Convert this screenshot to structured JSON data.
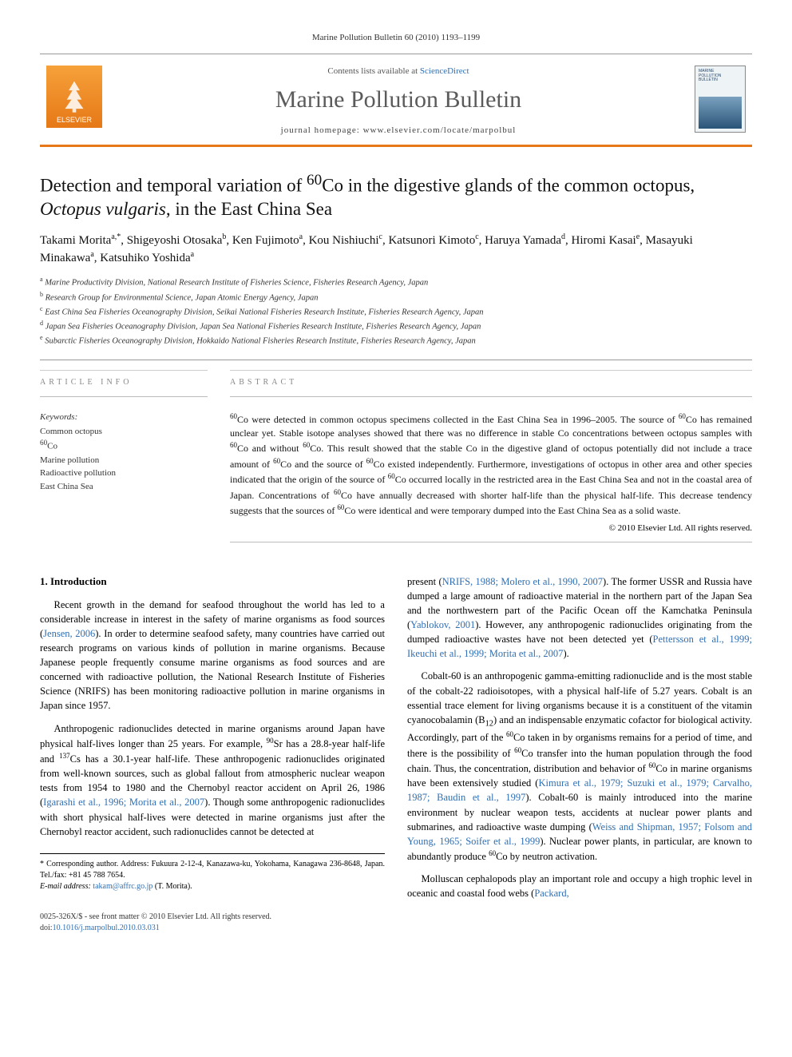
{
  "colors": {
    "accent_orange": "#e67817",
    "link_blue": "#2f6fb3",
    "text_gray": "#5b5b5b",
    "border_gray": "#999999"
  },
  "running_header": "Marine Pollution Bulletin 60 (2010) 1193–1199",
  "header": {
    "publisher_name": "ELSEVIER",
    "contents_prefix": "Contents lists available at ",
    "contents_link": "ScienceDirect",
    "journal_title": "Marine Pollution Bulletin",
    "homepage_prefix": "journal homepage: ",
    "homepage_url": "www.elsevier.com/locate/marpolbul",
    "cover_label_line1": "MARINE",
    "cover_label_line2": "POLLUTION",
    "cover_label_line3": "BULLETIN"
  },
  "title_html": "Detection and temporal variation of <sup>60</sup>Co in the digestive glands of the common octopus, <em>Octopus vulgaris</em>, in the East China Sea",
  "authors_html": "Takami Morita<sup>a,*</sup>, Shigeyoshi Otosaka<sup>b</sup>, Ken Fujimoto<sup>a</sup>, Kou Nishiuchi<sup>c</sup>, Katsunori Kimoto<sup>c</sup>, Haruya Yamada<sup>d</sup>, Hiromi Kasai<sup>e</sup>, Masayuki Minakawa<sup>a</sup>, Katsuhiko Yoshida<sup>a</sup>",
  "affiliations": [
    {
      "sup": "a",
      "text": "Marine Productivity Division, National Research Institute of Fisheries Science, Fisheries Research Agency, Japan"
    },
    {
      "sup": "b",
      "text": "Research Group for Environmental Science, Japan Atomic Energy Agency, Japan"
    },
    {
      "sup": "c",
      "text": "East China Sea Fisheries Oceanography Division, Seikai National Fisheries Research Institute, Fisheries Research Agency, Japan"
    },
    {
      "sup": "d",
      "text": "Japan Sea Fisheries Oceanography Division, Japan Sea National Fisheries Research Institute, Fisheries Research Agency, Japan"
    },
    {
      "sup": "e",
      "text": "Subarctic Fisheries Oceanography Division, Hokkaido National Fisheries Research Institute, Fisheries Research Agency, Japan"
    }
  ],
  "info_label": "ARTICLE INFO",
  "abstract_label": "ABSTRACT",
  "keywords_label": "Keywords:",
  "keywords": [
    "Common octopus",
    "60Co",
    "Marine pollution",
    "Radioactive pollution",
    "East China Sea"
  ],
  "abstract_html": "<sup>60</sup>Co were detected in common octopus specimens collected in the East China Sea in 1996–2005. The source of <sup>60</sup>Co has remained unclear yet. Stable isotope analyses showed that there was no difference in stable Co concentrations between octopus samples with <sup>60</sup>Co and without <sup>60</sup>Co. This result showed that the stable Co in the digestive gland of octopus potentially did not include a trace amount of <sup>60</sup>Co and the source of <sup>60</sup>Co existed independently. Furthermore, investigations of octopus in other area and other species indicated that the origin of the source of <sup>60</sup>Co occurred locally in the restricted area in the East China Sea and not in the coastal area of Japan. Concentrations of <sup>60</sup>Co have annually decreased with shorter half-life than the physical half-life. This decrease tendency suggests that the sources of <sup>60</sup>Co were identical and were temporary dumped into the East China Sea as a solid waste.",
  "copyright": "© 2010 Elsevier Ltd. All rights reserved.",
  "body": {
    "section_heading": "1. Introduction",
    "p1_html": "Recent growth in the demand for seafood throughout the world has led to a considerable increase in interest in the safety of marine organisms as food sources (<a class=\"ref\" href=\"#\">Jensen, 2006</a>). In order to determine seafood safety, many countries have carried out research programs on various kinds of pollution in marine organisms. Because Japanese people frequently consume marine organisms as food sources and are concerned with radioactive pollution, the National Research Institute of Fisheries Science (NRIFS) has been monitoring radioactive pollution in marine organisms in Japan since 1957.",
    "p2_html": "Anthropogenic radionuclides detected in marine organisms around Japan have physical half-lives longer than 25 years. For example, <sup>90</sup>Sr has a 28.8-year half-life and <sup>137</sup>Cs has a 30.1-year half-life. These anthropogenic radionuclides originated from well-known sources, such as global fallout from atmospheric nuclear weapon tests from 1954 to 1980 and the Chernobyl reactor accident on April 26, 1986 (<a class=\"ref\" href=\"#\">Igarashi et al., 1996; Morita et al., 2007</a>). Though some anthropogenic radionuclides with short physical half-lives were detected in marine organisms just after the Chernobyl reactor accident, such radionuclides cannot be detected at",
    "p2b_html": "present (<a class=\"ref\" href=\"#\">NRIFS, 1988; Molero et al., 1990, 2007</a>). The former USSR and Russia have dumped a large amount of radioactive material in the northern part of the Japan Sea and the northwestern part of the Pacific Ocean off the Kamchatka Peninsula (<a class=\"ref\" href=\"#\">Yablokov, 2001</a>). However, any anthropogenic radionuclides originating from the dumped radioactive wastes have not been detected yet (<a class=\"ref\" href=\"#\">Pettersson et al., 1999; Ikeuchi et al., 1999; Morita et al., 2007</a>).",
    "p3_html": "Cobalt-60 is an anthropogenic gamma-emitting radionuclide and is the most stable of the cobalt-22 radioisotopes, with a physical half-life of 5.27 years. Cobalt is an essential trace element for living organisms because it is a constituent of the vitamin cyanocobalamin (B<sub>12</sub>) and an indispensable enzymatic cofactor for biological activity. Accordingly, part of the <sup>60</sup>Co taken in by organisms remains for a period of time, and there is the possibility of <sup>60</sup>Co transfer into the human population through the food chain. Thus, the concentration, distribution and behavior of <sup>60</sup>Co in marine organisms have been extensively studied (<a class=\"ref\" href=\"#\">Kimura et al., 1979; Suzuki et al., 1979; Carvalho, 1987; Baudin et al., 1997</a>). Cobalt-60 is mainly introduced into the marine environment by nuclear weapon tests, accidents at nuclear power plants and submarines, and radioactive waste dumping (<a class=\"ref\" href=\"#\">Weiss and Shipman, 1957; Folsom and Young, 1965; Soifer et al., 1999</a>). Nuclear power plants, in particular, are known to abundantly produce <sup>60</sup>Co by neutron activation.",
    "p4_html": "Molluscan cephalopods play an important role and occupy a high trophic level in oceanic and coastal food webs (<a class=\"ref\" href=\"#\">Packard,</a>"
  },
  "footnote": {
    "corr_label": "* Corresponding author. Address: Fukuura 2-12-4, Kanazawa-ku, Yokohama, Kanagawa 236-8648, Japan. Tel./fax: +81 45 788 7654.",
    "email_label": "E-mail address:",
    "email": "takam@affrc.go.jp",
    "email_suffix": "(T. Morita)."
  },
  "footer": {
    "left_line1": "0025-326X/$ - see front matter © 2010 Elsevier Ltd. All rights reserved.",
    "left_line2_prefix": "doi:",
    "doi": "10.1016/j.marpolbul.2010.03.031"
  }
}
